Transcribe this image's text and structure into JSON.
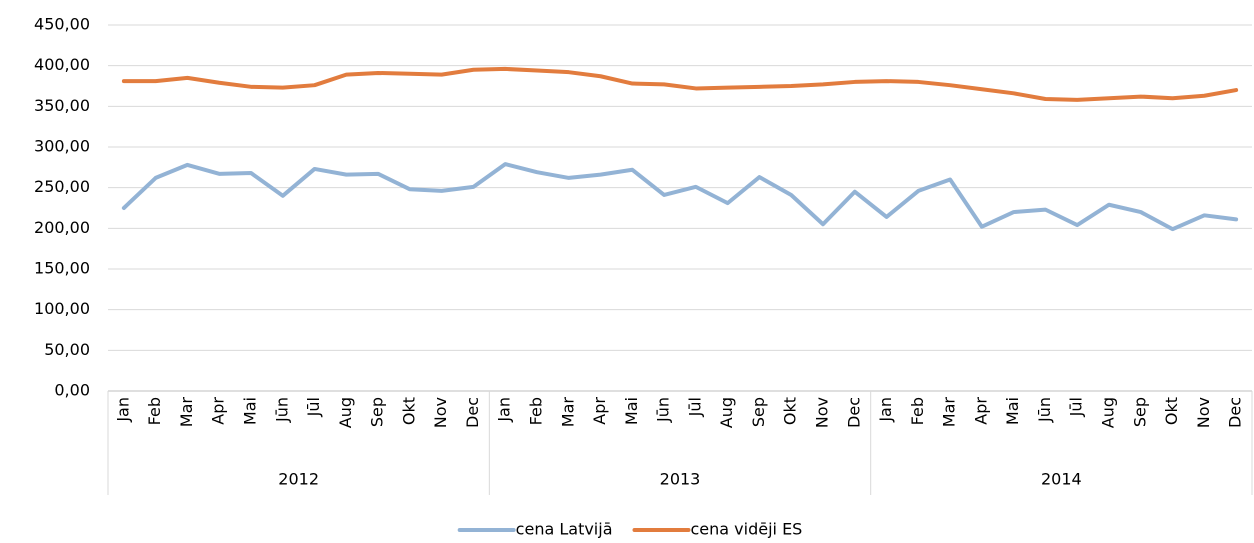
{
  "chart_data": {
    "type": "line",
    "categories": [
      "Jan",
      "Feb",
      "Mar",
      "Apr",
      "Mai",
      "Jūn",
      "Jūl",
      "Aug",
      "Sep",
      "Okt",
      "Nov",
      "Dec",
      "Jan",
      "Feb",
      "Mar",
      "Apr",
      "Mai",
      "Jūn",
      "Jūl",
      "Aug",
      "Sep",
      "Okt",
      "Nov",
      "Dec",
      "Jan",
      "Feb",
      "Mar",
      "Apr",
      "Mai",
      "Jūn",
      "Jūl",
      "Aug",
      "Sep",
      "Okt",
      "Nov",
      "Dec"
    ],
    "category_groups": [
      "2012",
      "2013",
      "2014"
    ],
    "series": [
      {
        "name": "cena Latvijā",
        "color": "#93b3d5",
        "values": [
          225,
          262,
          278,
          267,
          268,
          240,
          273,
          266,
          267,
          248,
          246,
          251,
          279,
          269,
          262,
          266,
          272,
          241,
          251,
          231,
          263,
          241,
          205,
          245,
          214,
          246,
          260,
          202,
          220,
          223,
          204,
          229,
          220,
          199,
          216,
          211
        ]
      },
      {
        "name": "cena vidēji ES",
        "color": "#e27c3e",
        "values": [
          381,
          381,
          385,
          379,
          374,
          373,
          376,
          389,
          391,
          390,
          389,
          395,
          396,
          394,
          392,
          387,
          378,
          377,
          372,
          373,
          374,
          375,
          377,
          380,
          381,
          380,
          376,
          371,
          366,
          359,
          358,
          360,
          362,
          360,
          363,
          370
        ]
      }
    ],
    "ylim": [
      0,
      450
    ],
    "yticks": [
      {
        "value": 0,
        "label": "0,00"
      },
      {
        "value": 50,
        "label": "50,00"
      },
      {
        "value": 100,
        "label": "100,00"
      },
      {
        "value": 150,
        "label": "150,00"
      },
      {
        "value": 200,
        "label": "200,00"
      },
      {
        "value": 250,
        "label": "250,00"
      },
      {
        "value": 300,
        "label": "300,00"
      },
      {
        "value": 350,
        "label": "350,00"
      },
      {
        "value": 400,
        "label": "400,00"
      },
      {
        "value": 450,
        "label": "450,00"
      }
    ],
    "grid": true,
    "legend": "bottom"
  }
}
